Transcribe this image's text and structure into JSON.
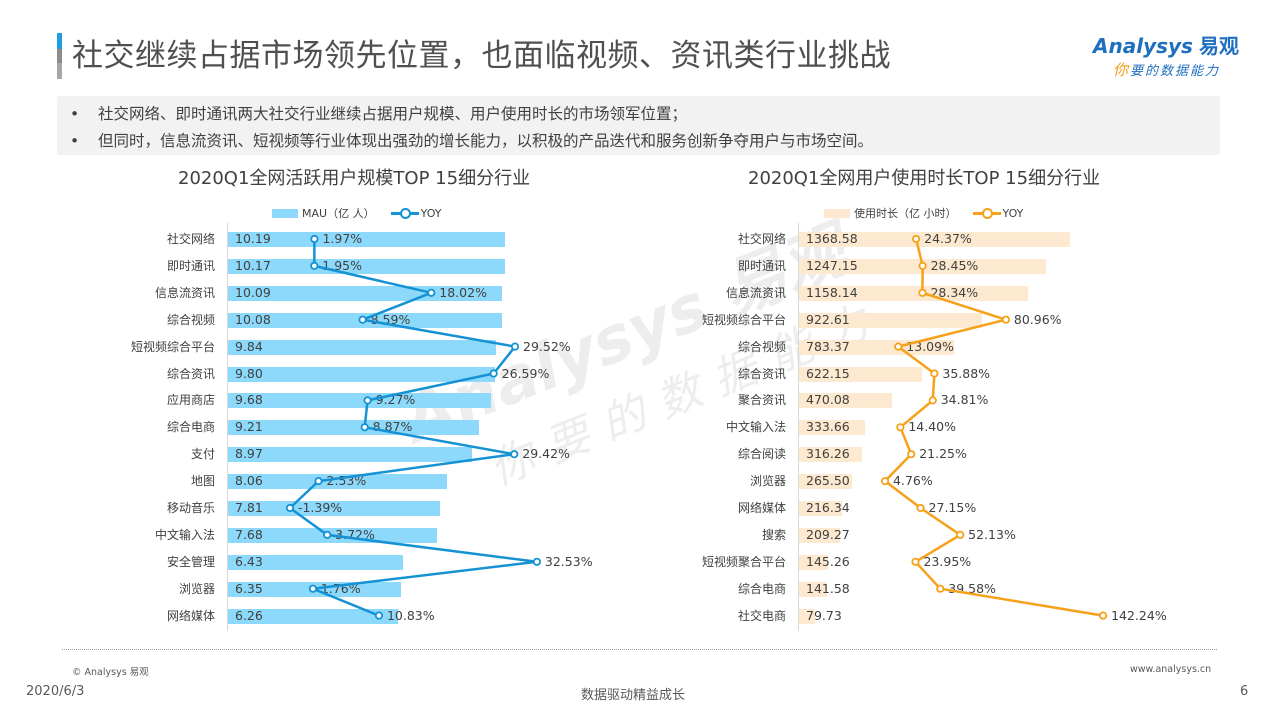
{
  "header": {
    "title": "社交继续占据市场领先位置，也面临视频、资讯类行业挑战",
    "logo_text": "Analysys",
    "logo_cn": "易观",
    "logo_slogan_first": "你",
    "logo_slogan_rest": "要的数据能力"
  },
  "bullets": [
    {
      "mark": "•",
      "text": "社交网络、即时通讯两大社交行业继续占据用户规模、用户使用时长的市场领军位置；"
    },
    {
      "mark": "•",
      "text": "但同时，信息流资讯、短视频等行业体现出强劲的增长能力，以积极的产品迭代和服务创新争夺用户与市场空间。"
    }
  ],
  "watermark": {
    "line1": "Analysys 易观",
    "line2": "你要的数据能力"
  },
  "colors": {
    "mau_bar": "#8dd9fb",
    "mau_line": "#1592d4",
    "time_bar": "#fde9cf",
    "time_line": "#f7a019",
    "accent_blue": "#1e9ee0"
  },
  "chart_data": [
    {
      "type": "bar+line",
      "orientation": "horizontal",
      "title": "2020Q1全网活跃用户规模TOP 15细分行业",
      "legend": [
        "MAU（亿 人）",
        "YOY"
      ],
      "categories": [
        "社交网络",
        "即时通讯",
        "信息流资讯",
        "综合视频",
        "短视频综合平台",
        "综合资讯",
        "应用商店",
        "综合电商",
        "支付",
        "地图",
        "移动音乐",
        "中文输入法",
        "安全管理",
        "浏览器",
        "网络媒体"
      ],
      "series": [
        {
          "name": "MAU（亿 人）",
          "type": "bar",
          "values": [
            10.19,
            10.17,
            10.09,
            10.08,
            9.84,
            9.8,
            9.68,
            9.21,
            8.97,
            8.06,
            7.81,
            7.68,
            6.43,
            6.35,
            6.26
          ],
          "labels": [
            "10.19",
            "10.17",
            "10.09",
            "10.08",
            "9.84",
            "9.80",
            "9.68",
            "9.21",
            "8.97",
            "8.06",
            "7.81",
            "7.68",
            "6.43",
            "6.35",
            "6.26"
          ]
        },
        {
          "name": "YOY",
          "type": "line",
          "values": [
            1.97,
            1.95,
            18.02,
            8.59,
            29.52,
            26.59,
            9.27,
            8.87,
            29.42,
            2.53,
            -1.39,
            3.72,
            32.53,
            1.76,
            10.83
          ],
          "labels": [
            "1.97%",
            "1.95%",
            "18.02%",
            "8.59%",
            "29.52%",
            "26.59%",
            "9.27%",
            "8.87%",
            "29.42%",
            "2.53%",
            "-1.39%",
            "3.72%",
            "32.53%",
            "1.76%",
            "10.83%"
          ]
        }
      ],
      "grid": false
    },
    {
      "type": "bar+line",
      "orientation": "horizontal",
      "title": "2020Q1全网用户使用时长TOP 15细分行业",
      "legend": [
        "使用时长（亿 小时）",
        "YOY"
      ],
      "categories": [
        "社交网络",
        "即时通讯",
        "信息流资讯",
        "短视频综合平台",
        "综合视频",
        "综合资讯",
        "聚合资讯",
        "中文输入法",
        "综合阅读",
        "浏览器",
        "网络媒体",
        "搜索",
        "短视频聚合平台",
        "综合电商",
        "社交电商"
      ],
      "series": [
        {
          "name": "使用时长（亿 小时）",
          "type": "bar",
          "values": [
            1368.58,
            1247.15,
            1158.14,
            922.61,
            783.37,
            622.15,
            470.08,
            333.66,
            316.26,
            265.5,
            216.34,
            209.27,
            145.26,
            141.58,
            79.73
          ],
          "labels": [
            "1368.58",
            "1247.15",
            "1158.14",
            "922.61",
            "783.37",
            "622.15",
            "470.08",
            "333.66",
            "316.26",
            "265.50",
            "216.34",
            "209.27",
            "145.26",
            "141.58",
            "79.73"
          ]
        },
        {
          "name": "YOY",
          "type": "line",
          "values": [
            24.37,
            28.45,
            28.34,
            80.96,
            13.09,
            35.88,
            34.81,
            14.4,
            21.25,
            4.76,
            27.15,
            52.13,
            23.95,
            39.58,
            142.24
          ],
          "labels": [
            "24.37%",
            "28.45%",
            "28.34%",
            "80.96%",
            "13.09%",
            "35.88%",
            "34.81%",
            "14.40%",
            "21.25%",
            "4.76%",
            "27.15%",
            "52.13%",
            "23.95%",
            "39.58%",
            "142.24%"
          ]
        }
      ],
      "grid": false
    }
  ],
  "footer": {
    "copyright": "© Analysys 易观",
    "website": "www.analysys.cn",
    "date": "2020/6/3",
    "slogan": "数据驱动精益成长",
    "page_number": "6"
  }
}
